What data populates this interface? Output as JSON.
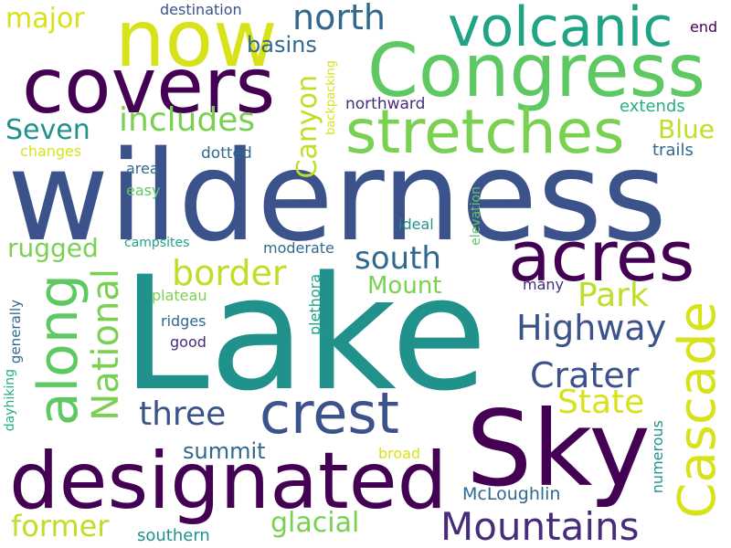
{
  "palette": {
    "dark_purple": "#440154",
    "navy": "#3b528b",
    "dark_blue": "#31688e",
    "teal": "#21918c",
    "sea_green": "#28ae80",
    "green": "#5ec962",
    "light_green": "#addc30",
    "yellow": "#fde725",
    "indigo": "#472c7a"
  },
  "words": {
    "lake": "Lake",
    "wilderness": "wilderness",
    "sky": "Sky",
    "designated": "designated",
    "congress": "Congress",
    "covers": "covers",
    "now": "now",
    "acres": "acres",
    "stretches": "stretches",
    "volcanic": "volcanic",
    "crest": "crest",
    "cascade": "Cascade",
    "along": "along",
    "mountains": "Mountains",
    "national": "National",
    "highway": "Highway",
    "crater": "Crater",
    "includes": "includes",
    "north": "north",
    "border": "border",
    "park": "Park",
    "state": "State",
    "three": "three",
    "south": "south",
    "former": "former",
    "glacial": "glacial",
    "major": "major",
    "canyon": "Canyon",
    "seven": "Seven",
    "blue": "Blue",
    "rugged": "rugged",
    "mount": "Mount",
    "basins": "basins",
    "summit": "summit",
    "mcloughlin": "McLoughlin",
    "southern": "southern",
    "destination": "destination",
    "end": "end",
    "northward": "northward",
    "extends": "extends",
    "backpacking": "backpacking",
    "changes": "changes",
    "dotted": "dotted",
    "trails": "trails",
    "area": "area",
    "easy": "easy",
    "ideal": "ideal",
    "elevation": "elevation",
    "campsites": "campsites",
    "moderate": "moderate",
    "many": "many",
    "plateau": "plateau",
    "ridges": "ridges",
    "generally": "generally",
    "plethora": "plethora",
    "good": "good",
    "dayhiking": "dayhiking",
    "numerous": "numerous",
    "broad": "broad"
  }
}
